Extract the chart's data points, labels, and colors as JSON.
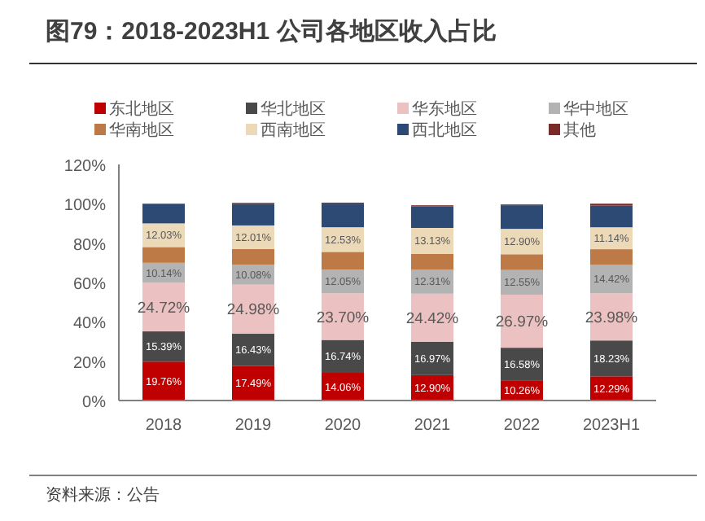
{
  "chart_data": {
    "type": "bar",
    "stacked": true,
    "title": "图79：2018-2023H1 公司各地区收入占比",
    "categories": [
      "2018",
      "2019",
      "2020",
      "2021",
      "2022",
      "2023H1"
    ],
    "series": [
      {
        "name": "东北地区",
        "color": "#c00000",
        "values": [
          19.76,
          17.49,
          14.06,
          12.9,
          10.26,
          12.29
        ],
        "value_labels": [
          "19.76%",
          "17.49%",
          "14.06%",
          "12.90%",
          "10.26%",
          "12.29%"
        ]
      },
      {
        "name": "华北地区",
        "color": "#494949",
        "values": [
          15.39,
          16.43,
          16.74,
          16.97,
          16.58,
          18.23
        ],
        "value_labels": [
          "15.39%",
          "16.43%",
          "16.74%",
          "16.97%",
          "16.58%",
          "18.23%"
        ]
      },
      {
        "name": "华东地区",
        "color": "#ebc1c1",
        "values": [
          24.72,
          24.98,
          23.7,
          24.42,
          26.97,
          23.98
        ],
        "value_labels": [
          "24.72%",
          "24.98%",
          "23.70%",
          "24.42%",
          "26.97%",
          "23.98%"
        ]
      },
      {
        "name": "华中地区",
        "color": "#b3b3b3",
        "values": [
          10.14,
          10.08,
          12.05,
          12.31,
          12.55,
          14.42
        ],
        "value_labels": [
          "10.14%",
          "10.08%",
          "12.05%",
          "12.31%",
          "12.55%",
          "14.42%"
        ]
      },
      {
        "name": "华南地区",
        "color": "#bd7a46",
        "values": [
          8,
          8,
          9,
          8,
          8,
          8
        ]
      },
      {
        "name": "西南地区",
        "color": "#ecd9b8",
        "values": [
          12.03,
          12.01,
          12.53,
          13.13,
          12.9,
          11.14
        ],
        "value_labels": [
          "12.03%",
          "12.01%",
          "12.53%",
          "13.13%",
          "12.90%",
          "11.14%"
        ]
      },
      {
        "name": "西北地区",
        "color": "#2c4a74",
        "values": [
          10,
          11,
          12,
          11,
          12,
          11
        ]
      },
      {
        "name": "其他",
        "color": "#7b2a2a",
        "values": [
          0,
          0.5,
          0.5,
          0.5,
          0.4,
          1.0
        ]
      }
    ],
    "ylim": [
      0,
      120
    ],
    "yticks": [
      {
        "value": 0,
        "label": "0%"
      },
      {
        "value": 20,
        "label": "20%"
      },
      {
        "value": 40,
        "label": "40%"
      },
      {
        "value": 60,
        "label": "60%"
      },
      {
        "value": 80,
        "label": "80%"
      },
      {
        "value": 100,
        "label": "100%"
      },
      {
        "value": 120,
        "label": "120%"
      }
    ],
    "legend": "top",
    "annotations": [
      "资料来源：公告"
    ]
  }
}
